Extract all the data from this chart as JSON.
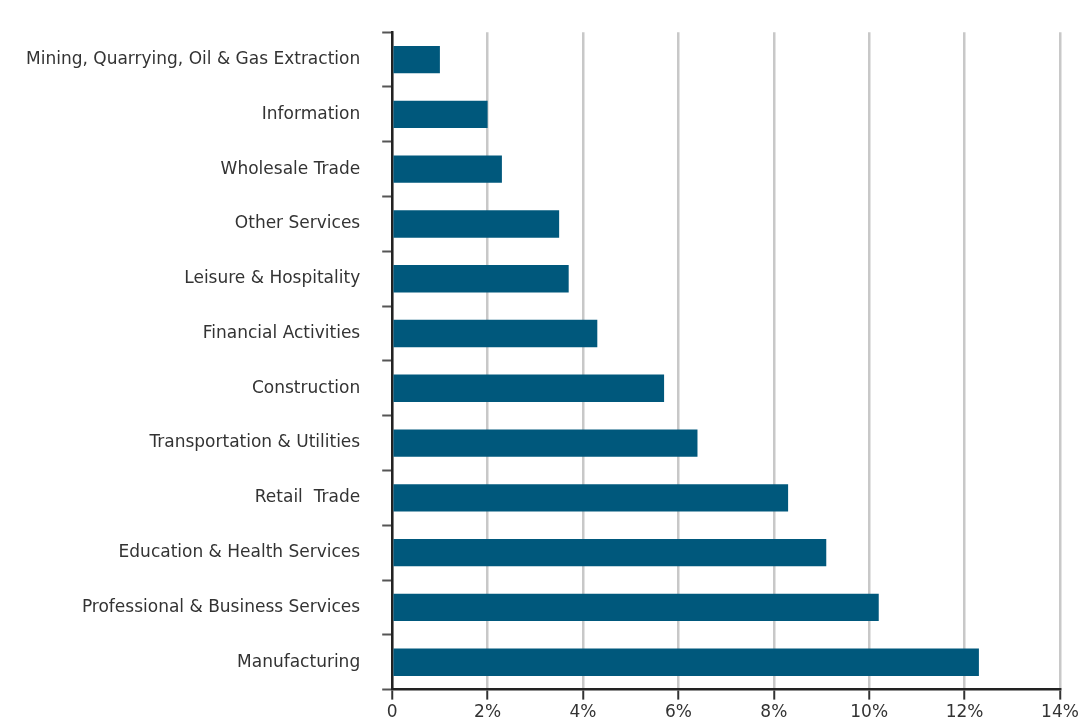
{
  "chart_data": {
    "type": "bar",
    "orientation": "horizontal",
    "categories": [
      "Mining, Quarrying, Oil & Gas Extraction",
      "Information",
      "Wholesale Trade",
      "Other Services",
      "Leisure & Hospitality",
      "Financial Activities",
      "Construction",
      "Transportation & Utilities",
      "Retail  Trade",
      "Education & Health Services",
      "Professional & Business Services",
      "Manufacturing"
    ],
    "values": [
      1.0,
      2.0,
      2.3,
      3.5,
      3.7,
      4.3,
      5.7,
      6.4,
      8.3,
      9.1,
      10.2,
      12.3
    ],
    "color": "#00587c",
    "xlim": [
      0,
      14
    ],
    "xticks": [
      0,
      {
        "value": 2,
        "label": "2%"
      },
      {
        "value": 4,
        "label": "4%"
      },
      {
        "value": 6,
        "label": "6%"
      },
      {
        "value": 8,
        "label": "8%"
      },
      {
        "value": 10,
        "label": "10%"
      },
      {
        "value": 12,
        "label": "12%"
      },
      {
        "value": 14,
        "label": "14%"
      }
    ],
    "grid": "x"
  }
}
